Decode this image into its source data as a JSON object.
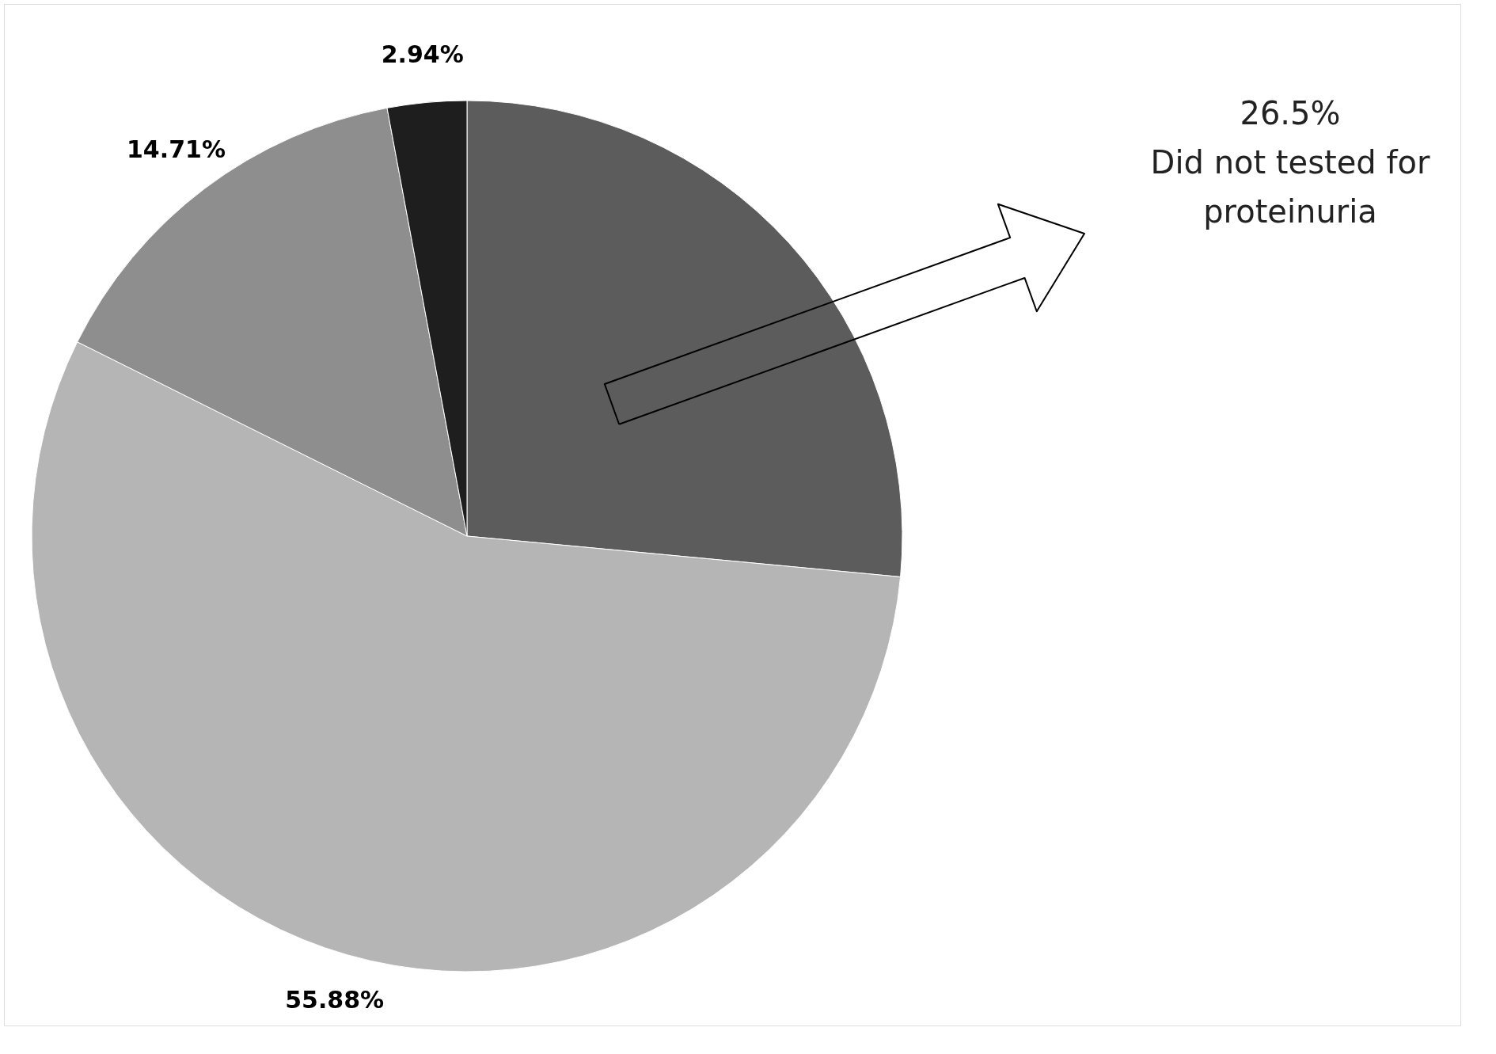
{
  "chart_data": {
    "type": "pie",
    "categories": [
      "Did not tested for proteinuria",
      null,
      null,
      null
    ],
    "values": [
      26.5,
      55.88,
      14.71,
      2.94
    ],
    "colors": [
      "#5c5c5c",
      "#b5b5b5",
      "#8e8e8e",
      "#1e1e1e"
    ],
    "value_labels": [
      "26.5%",
      "55.88%",
      "14.71%",
      "2.94%"
    ],
    "legend": false
  }
}
